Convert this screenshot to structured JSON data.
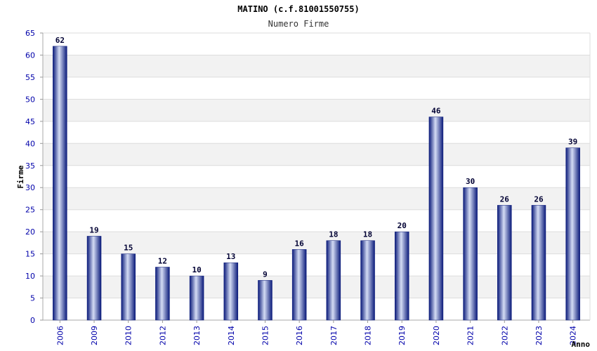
{
  "chart_data": {
    "type": "bar",
    "title": "MATINO (c.f.81001550755)",
    "subtitle": "Numero Firme",
    "xlabel": "Anno",
    "ylabel": "Firme",
    "ylim": [
      0,
      65
    ],
    "yticks": [
      0,
      5,
      10,
      15,
      20,
      25,
      30,
      35,
      40,
      45,
      50,
      55,
      60,
      65
    ],
    "categories": [
      "2006",
      "2009",
      "2010",
      "2012",
      "2013",
      "2014",
      "2015",
      "2016",
      "2017",
      "2018",
      "2019",
      "2020",
      "2021",
      "2022",
      "2023",
      "2024"
    ],
    "values": [
      62,
      19,
      15,
      12,
      10,
      13,
      9,
      16,
      18,
      18,
      20,
      46,
      30,
      26,
      26,
      39
    ],
    "grid": true,
    "legend": "none",
    "colors": {
      "bar_dark": "#0a1a7a",
      "bar_light": "#d4dcf4",
      "band": "#f2f2f2",
      "tick": "#0000aa"
    }
  }
}
